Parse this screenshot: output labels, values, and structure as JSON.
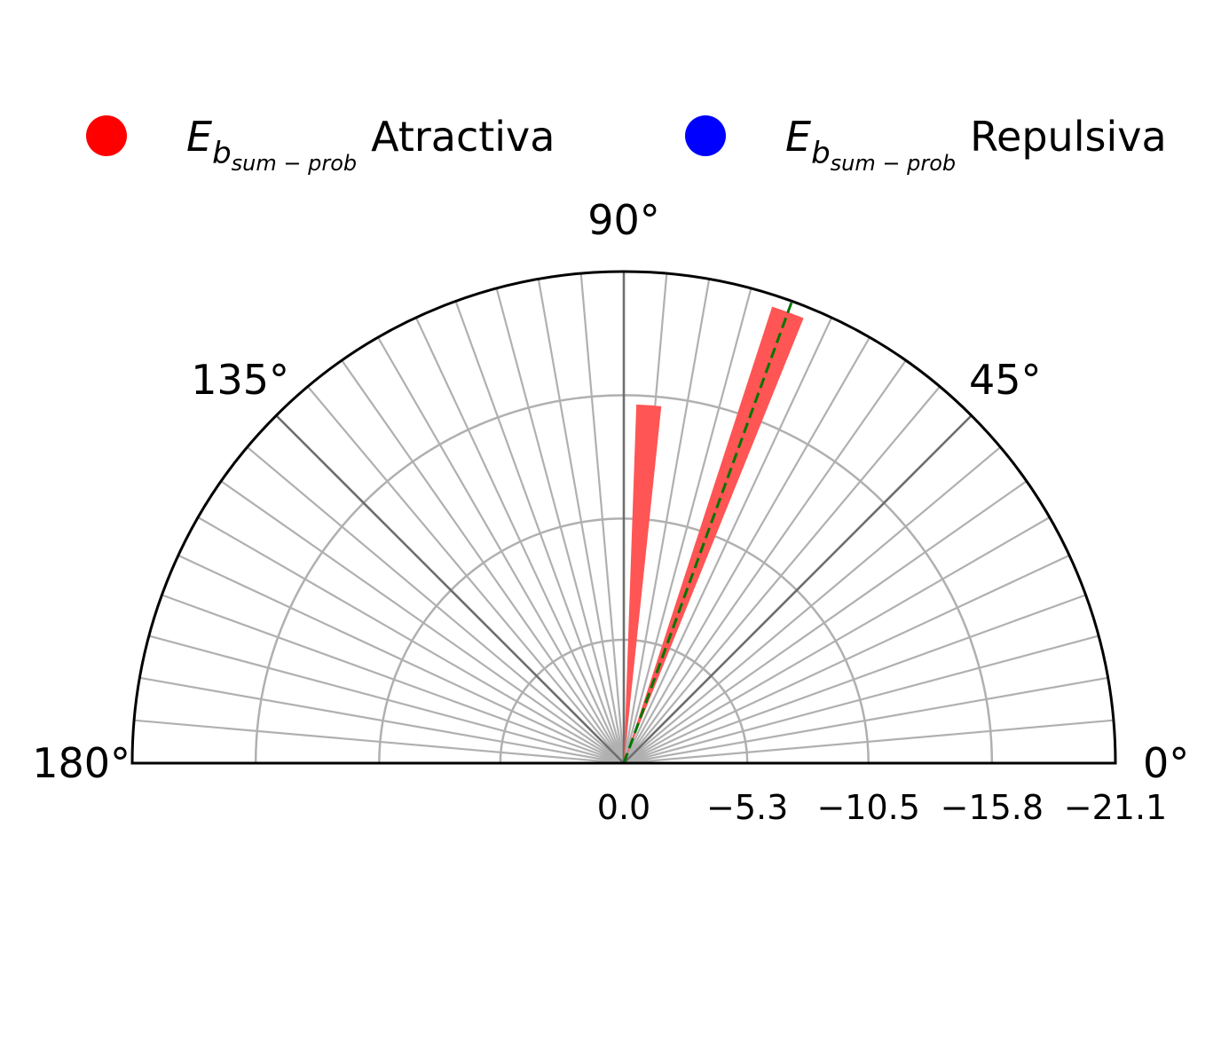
{
  "chart_data": {
    "type": "polar-bar",
    "title": "",
    "theta_range_deg": [
      0,
      180
    ],
    "angle_ticks": [
      {
        "deg": 0,
        "label": "0°"
      },
      {
        "deg": 45,
        "label": "45°"
      },
      {
        "deg": 90,
        "label": "90°"
      },
      {
        "deg": 135,
        "label": "135°"
      },
      {
        "deg": 180,
        "label": "180°"
      }
    ],
    "radial_ticks": [
      {
        "value": 0.0,
        "label": "0.0"
      },
      {
        "value": -5.3,
        "label": "−5.3"
      },
      {
        "value": -10.5,
        "label": "−10.5"
      },
      {
        "value": -15.8,
        "label": "−15.8"
      },
      {
        "value": -21.1,
        "label": "−21.1"
      }
    ],
    "radial_range": [
      0,
      -21.1
    ],
    "minor_angle_step_deg": 5,
    "grid": true,
    "legend_placement": "top",
    "legend": [
      {
        "symbol": "E",
        "subscript": "b",
        "subsubscript": "sum − prob",
        "label": "Atractiva",
        "color": "#ff0000"
      },
      {
        "symbol": "E",
        "subscript": "b",
        "subsubscript": "sum − prob",
        "label": "Repulsiva",
        "color": "#0000ff"
      }
    ],
    "series": [
      {
        "name": "Atractiva",
        "color": "#ff5555",
        "bars": [
          {
            "theta_deg": 86,
            "width_deg": 4,
            "value": -15.4
          },
          {
            "theta_deg": 70,
            "width_deg": 4,
            "value": -20.6
          }
        ]
      }
    ],
    "reference_line": {
      "theta_deg": 70,
      "color": "#007700",
      "style": "dashed"
    }
  }
}
